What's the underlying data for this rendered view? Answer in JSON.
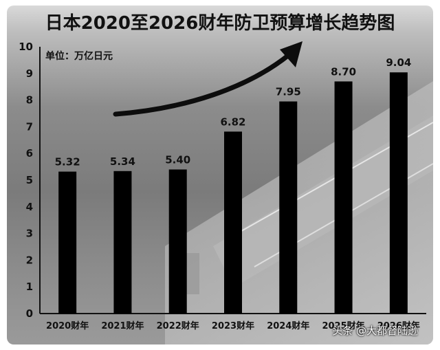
{
  "chart_data": {
    "type": "bar",
    "title": "日本2020至2026财年防卫预算增长趋势图",
    "unit_label": "单位：万亿日元",
    "categories": [
      "2020财年",
      "2021财年",
      "2022财年",
      "2023财年",
      "2024财年",
      "2025财年",
      "2026财年"
    ],
    "values": [
      5.32,
      5.34,
      5.4,
      6.82,
      7.95,
      8.7,
      9.04
    ],
    "value_labels": [
      "5.32",
      "5.34",
      "5.40",
      "6.82",
      "7.95",
      "8.70",
      "9.04"
    ],
    "yticks": [
      "0",
      "1",
      "2",
      "3",
      "4",
      "5",
      "6",
      "7",
      "8",
      "9",
      "10"
    ],
    "ylim": [
      0,
      10
    ],
    "bar_color": "#000000",
    "arrow": "increasing-trend"
  },
  "watermark": "头条 @大都督陆逊"
}
